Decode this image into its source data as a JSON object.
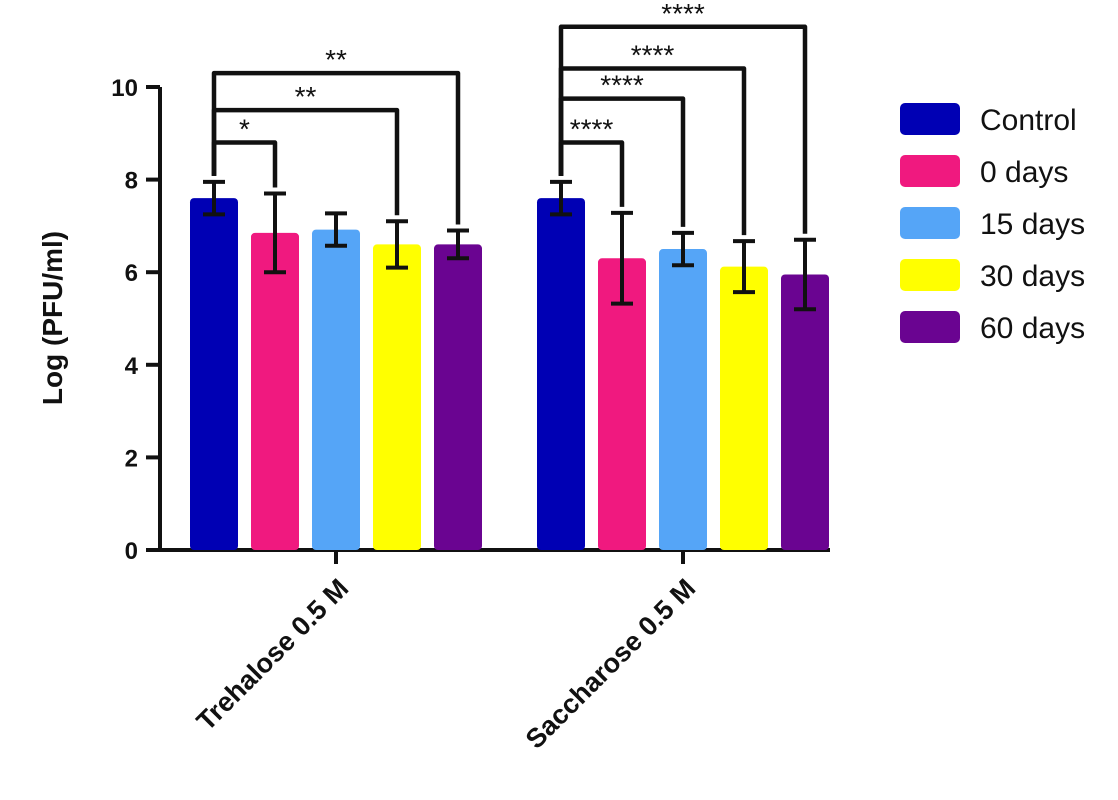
{
  "chart_data": {
    "type": "bar",
    "title": "",
    "xlabel": "",
    "ylabel": "Log (PFU/ml)",
    "ylim": [
      0,
      10
    ],
    "yticks": [
      0,
      2,
      4,
      6,
      8,
      10
    ],
    "categories": [
      "Trehalose 0.5 M",
      "Saccharose 0.5 M"
    ],
    "series": [
      {
        "name": "Control",
        "color": "#0000b4",
        "values": [
          7.6,
          7.6
        ],
        "errors": [
          0.35,
          0.35
        ]
      },
      {
        "name": "0 days",
        "color": "#f0197f",
        "values": [
          6.85,
          6.3
        ],
        "errors": [
          0.85,
          0.98
        ]
      },
      {
        "name": "15 days",
        "color": "#55a5f7",
        "values": [
          6.92,
          6.5
        ],
        "errors": [
          0.35,
          0.35
        ]
      },
      {
        "name": "30 days",
        "color": "#ffff00",
        "values": [
          6.6,
          6.12
        ],
        "errors": [
          0.5,
          0.55
        ]
      },
      {
        "name": "60 days",
        "color": "#6a0491",
        "values": [
          6.6,
          5.95
        ],
        "errors": [
          0.3,
          0.75
        ]
      }
    ],
    "significance": [
      {
        "category": 0,
        "from_series": 0,
        "to_series": 1,
        "level": 8.8,
        "label": "*"
      },
      {
        "category": 0,
        "from_series": 0,
        "to_series": 3,
        "level": 9.5,
        "label": "**"
      },
      {
        "category": 0,
        "from_series": 0,
        "to_series": 4,
        "level": 10.3,
        "label": "**"
      },
      {
        "category": 1,
        "from_series": 0,
        "to_series": 1,
        "level": 8.8,
        "label": "****"
      },
      {
        "category": 1,
        "from_series": 0,
        "to_series": 2,
        "level": 9.75,
        "label": "****"
      },
      {
        "category": 1,
        "from_series": 0,
        "to_series": 3,
        "level": 10.4,
        "label": "****"
      },
      {
        "category": 1,
        "from_series": 0,
        "to_series": 4,
        "level": 11.3,
        "label": "****"
      }
    ],
    "legend": {
      "position": "right",
      "entries": [
        "Control",
        "0 days",
        "15 days",
        "30 days",
        "60 days"
      ]
    }
  }
}
